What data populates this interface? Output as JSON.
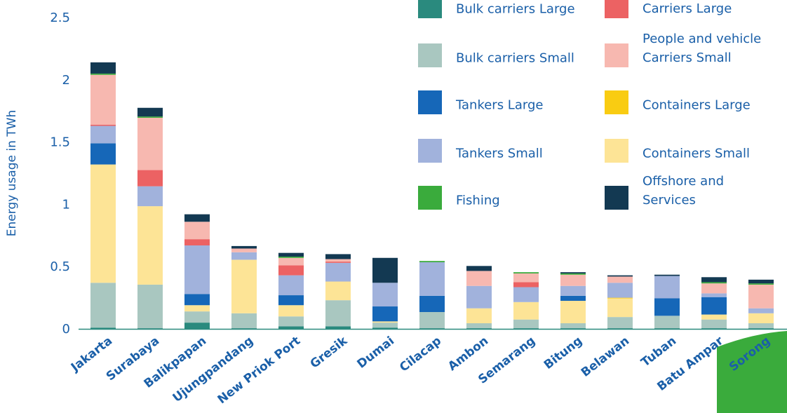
{
  "chart_data": {
    "type": "bar",
    "stacked": true,
    "title": "",
    "xlabel": "",
    "ylabel": "Energy usage in TWh",
    "ylim": [
      0,
      2.5
    ],
    "yticks": [
      {
        "value": 0,
        "label": "0"
      },
      {
        "value": 0.5,
        "label": "0.5"
      },
      {
        "value": 1,
        "label": "1"
      },
      {
        "value": 1.5,
        "label": "1.5"
      },
      {
        "value": 2,
        "label": "2"
      },
      {
        "value": 2.5,
        "label": "2.5"
      }
    ],
    "grid": false,
    "legend_position": "top-right",
    "categories": [
      "Jakarta",
      "Surabaya",
      "Balikpapan",
      "Ujungpandang",
      "New Priok Port",
      "Gresik",
      "Dumai",
      "Cilacap",
      "Ambon",
      "Semarang",
      "Bitung",
      "Belawan",
      "Tuban",
      "Batu Ampar",
      "Sorong"
    ],
    "series": [
      {
        "name": "Bulk carriers Large",
        "color": "#2a8a7e",
        "values": [
          0.01,
          0.005,
          0.05,
          0.005,
          0.02,
          0.02,
          0.01,
          0.005,
          0.005,
          0.005,
          0.005,
          0.005,
          0.005,
          0.005,
          0.005
        ]
      },
      {
        "name": "Bulk carriers Small",
        "color": "#a9c7c0",
        "values": [
          0.36,
          0.35,
          0.09,
          0.12,
          0.08,
          0.21,
          0.04,
          0.13,
          0.04,
          0.07,
          0.04,
          0.09,
          0.1,
          0.07,
          0.04
        ]
      },
      {
        "name": "Containers Small",
        "color": "#fde496",
        "values": [
          0.95,
          0.63,
          0.05,
          0.43,
          0.09,
          0.15,
          0.01,
          0.0,
          0.12,
          0.14,
          0.18,
          0.15,
          0.0,
          0.04,
          0.08
        ]
      },
      {
        "name": "Containers Large",
        "color": "#f9cc12",
        "values": [
          0.0,
          0.0,
          0.0,
          0.0,
          0.0,
          0.0,
          0.0,
          0.0,
          0.0,
          0.0,
          0.0,
          0.005,
          0.0,
          0.0,
          0.0
        ]
      },
      {
        "name": "Tankers Large",
        "color": "#1667b8",
        "values": [
          0.17,
          0.0,
          0.09,
          0.0,
          0.08,
          0.0,
          0.12,
          0.13,
          0.0,
          0.0,
          0.04,
          0.0,
          0.14,
          0.14,
          0.0
        ]
      },
      {
        "name": "Tankers Small",
        "color": "#a1b2dc",
        "values": [
          0.14,
          0.16,
          0.39,
          0.06,
          0.16,
          0.15,
          0.19,
          0.27,
          0.18,
          0.12,
          0.08,
          0.12,
          0.18,
          0.03,
          0.04
        ]
      },
      {
        "name": "People and vehicle Carriers Large",
        "color": "#ec6263",
        "values": [
          0.01,
          0.13,
          0.05,
          0.0,
          0.08,
          0.01,
          0.0,
          0.0,
          0.0,
          0.04,
          0.0,
          0.0,
          0.0,
          0.0,
          0.0
        ]
      },
      {
        "name": "People and vehicle Carriers Small",
        "color": "#f7b8b0",
        "values": [
          0.4,
          0.42,
          0.14,
          0.03,
          0.06,
          0.02,
          0.0,
          0.0,
          0.12,
          0.07,
          0.09,
          0.05,
          0.0,
          0.08,
          0.19
        ]
      },
      {
        "name": "Fishing",
        "color": "#3aab3c",
        "values": [
          0.01,
          0.01,
          0.0,
          0.0,
          0.01,
          0.0,
          0.0,
          0.01,
          0.0,
          0.01,
          0.01,
          0.0,
          0.0,
          0.01,
          0.01
        ]
      },
      {
        "name": "Offshore and Services",
        "color": "#133952",
        "values": [
          0.09,
          0.07,
          0.06,
          0.02,
          0.03,
          0.04,
          0.2,
          0.0,
          0.04,
          0.0,
          0.01,
          0.01,
          0.01,
          0.04,
          0.03
        ]
      }
    ],
    "legend": [
      {
        "label": "Bulk carriers Large",
        "color": "#2a8a7e"
      },
      {
        "label": "People and vehicle Carriers Large",
        "color": "#ec6263"
      },
      {
        "label": "Bulk carriers Small",
        "color": "#a9c7c0"
      },
      {
        "label": "People and vehicle Carriers Small",
        "color": "#f7b8b0"
      },
      {
        "label": "Tankers Large",
        "color": "#1667b8"
      },
      {
        "label": "Containers Large",
        "color": "#f9cc12"
      },
      {
        "label": "Tankers Small",
        "color": "#a1b2dc"
      },
      {
        "label": "Containers Small",
        "color": "#fde496"
      },
      {
        "label": "Fishing",
        "color": "#3aab3c"
      },
      {
        "label": "Offshore and Services",
        "color": "#133952"
      }
    ],
    "colors": {
      "text": "#1a5fa8",
      "axis_line": "#2a8a7e",
      "decoration": "#3aab3c"
    }
  }
}
